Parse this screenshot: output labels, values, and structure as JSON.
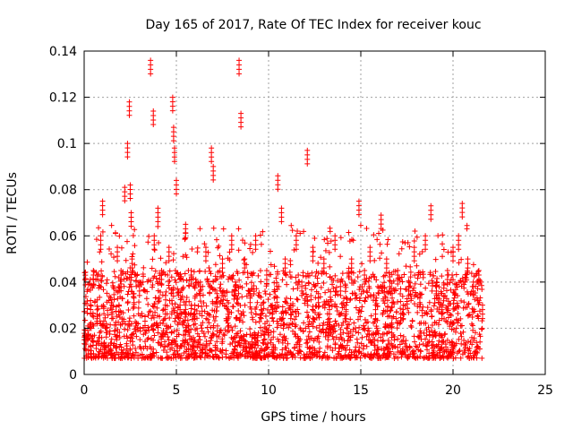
{
  "chart_data": {
    "type": "scatter",
    "title": "Day 165 of 2017, Rate Of TEC Index for receiver kouc",
    "xlabel": "GPS time / hours",
    "ylabel": "ROTI / TECUs",
    "xlim": [
      0,
      25
    ],
    "ylim": [
      0,
      0.14
    ],
    "xticks": [
      0,
      5,
      10,
      15,
      20,
      25
    ],
    "xtick_labels": [
      "0",
      "5",
      "10",
      "15",
      "20",
      "25"
    ],
    "yticks": [
      0,
      0.02,
      0.04,
      0.06,
      0.08,
      0.1,
      0.12,
      0.14
    ],
    "ytick_labels": [
      "0",
      "0.02",
      "0.04",
      "0.06",
      "0.08",
      "0.1",
      "0.12",
      "0.14"
    ],
    "grid": true,
    "marker": "+",
    "color": "#ff0000",
    "series": [
      {
        "x": [
          0.05,
          0.2,
          0.35,
          0.5,
          0.7,
          0.9,
          1.0,
          1.2,
          1.5,
          1.8,
          2.0,
          2.2,
          2.35,
          2.45,
          2.5,
          2.55,
          2.6,
          2.7,
          3.0,
          3.3,
          3.6,
          3.75,
          3.8,
          4.0,
          4.2,
          4.4,
          4.6,
          4.8,
          4.85,
          4.9,
          5.0,
          5.2,
          5.5,
          5.8,
          6.0,
          6.3,
          6.6,
          6.9,
          7.0,
          7.2,
          7.5,
          7.8,
          8.0,
          8.2,
          8.4,
          8.5,
          8.7,
          9.0,
          9.3,
          9.6,
          9.9,
          10.2,
          10.5,
          10.7,
          10.9,
          11.2,
          11.5,
          11.8,
          12.1,
          12.4,
          12.7,
          13.0,
          13.3,
          13.6,
          13.9,
          14.2,
          14.5,
          14.9,
          15.2,
          15.5,
          15.8,
          16.1,
          16.4,
          16.7,
          17.0,
          17.3,
          17.6,
          17.9,
          18.2,
          18.5,
          18.8,
          19.1,
          19.4,
          19.7,
          20.0,
          20.3,
          20.5,
          20.8,
          21.1,
          21.4,
          21.6
        ],
        "y": [
          0.017,
          0.021,
          0.032,
          0.045,
          0.028,
          0.06,
          0.075,
          0.022,
          0.03,
          0.055,
          0.045,
          0.081,
          0.1,
          0.118,
          0.082,
          0.07,
          0.05,
          0.035,
          0.04,
          0.025,
          0.136,
          0.114,
          0.06,
          0.072,
          0.045,
          0.03,
          0.055,
          0.12,
          0.107,
          0.098,
          0.084,
          0.03,
          0.065,
          0.045,
          0.03,
          0.04,
          0.055,
          0.098,
          0.09,
          0.035,
          0.05,
          0.028,
          0.06,
          0.04,
          0.136,
          0.113,
          0.05,
          0.035,
          0.06,
          0.03,
          0.045,
          0.03,
          0.086,
          0.072,
          0.05,
          0.03,
          0.06,
          0.04,
          0.097,
          0.055,
          0.035,
          0.05,
          0.03,
          0.06,
          0.04,
          0.03,
          0.05,
          0.075,
          0.045,
          0.055,
          0.03,
          0.069,
          0.05,
          0.035,
          0.045,
          0.03,
          0.04,
          0.055,
          0.035,
          0.06,
          0.073,
          0.04,
          0.03,
          0.045,
          0.055,
          0.06,
          0.074,
          0.05,
          0.04,
          0.045,
          0.03
        ]
      }
    ]
  }
}
